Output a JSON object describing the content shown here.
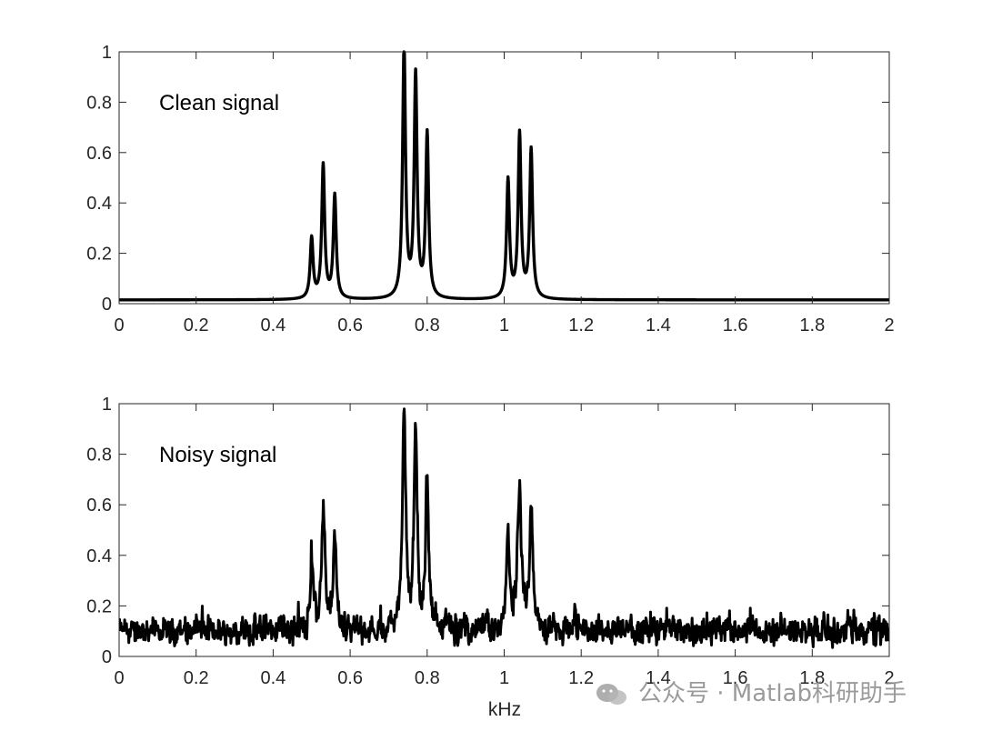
{
  "watermark": "公众号 · Matlab科研助手",
  "chart_data": [
    {
      "type": "line",
      "annotation": "Clean signal",
      "xlabel": "",
      "ylabel": "",
      "xlim": [
        0,
        2
      ],
      "ylim": [
        0,
        1
      ],
      "xticks": [
        "0",
        "0.2",
        "0.4",
        "0.6",
        "0.8",
        "1",
        "1.2",
        "1.4",
        "1.6",
        "1.8",
        "2"
      ],
      "yticks": [
        "0",
        "0.2",
        "0.4",
        "0.6",
        "0.8",
        "1"
      ],
      "grid": false,
      "baseline": 0.015,
      "peaks": [
        {
          "x": 0.5,
          "y": 0.24
        },
        {
          "x": 0.53,
          "y": 0.53
        },
        {
          "x": 0.56,
          "y": 0.41
        },
        {
          "x": 0.74,
          "y": 1.0
        },
        {
          "x": 0.77,
          "y": 0.88
        },
        {
          "x": 0.8,
          "y": 0.65
        },
        {
          "x": 1.01,
          "y": 0.47
        },
        {
          "x": 1.04,
          "y": 0.65
        },
        {
          "x": 1.07,
          "y": 0.59
        }
      ],
      "color": "#000000"
    },
    {
      "type": "line",
      "annotation": "Noisy signal",
      "xlabel": "kHz",
      "ylabel": "",
      "xlim": [
        0,
        2
      ],
      "ylim": [
        0,
        1
      ],
      "xticks": [
        "0",
        "0.2",
        "0.4",
        "0.6",
        "0.8",
        "1",
        "1.2",
        "1.4",
        "1.6",
        "1.8",
        "2"
      ],
      "yticks": [
        "0",
        "0.2",
        "0.4",
        "0.6",
        "0.8",
        "1"
      ],
      "grid": false,
      "noise_floor": 0.1,
      "noise_range": [
        0.02,
        0.24
      ],
      "peaks": [
        {
          "x": 0.5,
          "y": 0.36
        },
        {
          "x": 0.53,
          "y": 0.56
        },
        {
          "x": 0.56,
          "y": 0.45
        },
        {
          "x": 0.74,
          "y": 1.0
        },
        {
          "x": 0.77,
          "y": 0.86
        },
        {
          "x": 0.8,
          "y": 0.63
        },
        {
          "x": 1.01,
          "y": 0.48
        },
        {
          "x": 1.04,
          "y": 0.67
        },
        {
          "x": 1.07,
          "y": 0.56
        }
      ],
      "color": "#000000"
    }
  ]
}
